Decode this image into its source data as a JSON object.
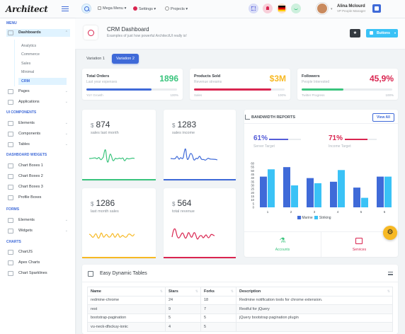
{
  "header": {
    "logo": "Architect",
    "nav": [
      {
        "label": "Mega Menu",
        "caret": "▾"
      },
      {
        "label": "Settings",
        "caret": "▾"
      },
      {
        "label": "Projects",
        "caret": "▾"
      }
    ],
    "user": {
      "name": "Alina Mclourd",
      "role": "VP People Manager"
    }
  },
  "sidebar": {
    "sections": {
      "menu": "Menu",
      "ui": "UI Components",
      "widgets": "Dashboard Widgets",
      "forms": "Forms",
      "charts": "Charts"
    },
    "items": {
      "dashboards": "Dashboards",
      "analytics": "Analytics",
      "commerce": "Commerce",
      "sales": "Sales",
      "minimal": "Minimal",
      "crm": "CRM",
      "pages": "Pages",
      "applications": "Applications",
      "elements": "Elements",
      "components": "Components",
      "tables": "Tables",
      "chartboxes1": "Chart Boxes 1",
      "chartboxes2": "Chart Boxes 2",
      "chartboxes3": "Chart Boxes 3",
      "profileboxes": "Profile Boxes",
      "f_elements": "Elements",
      "f_widgets": "Widgets",
      "chartjs": "ChartJS",
      "apex": "Apex Charts",
      "sparklines": "Chart Sparklines"
    }
  },
  "page": {
    "title": "CRM Dashboard",
    "subtitle": "Examples of just how powerful ArchitectUI really is!",
    "buttons_label": "Buttons",
    "tabs": [
      "Variation 1",
      "Variation 2"
    ]
  },
  "stats": [
    {
      "title": "Total Orders",
      "sub": "Last year expenses",
      "value": "1896",
      "foot_l": "YoY Growth",
      "foot_r": "100%",
      "progress": 0.72,
      "color": "#3ac47d",
      "bar": "#3f6ad8"
    },
    {
      "title": "Products Sold",
      "sub": "Revenue streams",
      "value": "$3M",
      "foot_l": "Sales",
      "foot_r": "100%",
      "progress": 0.85,
      "color": "#f7b924",
      "bar": "#d92550"
    },
    {
      "title": "Followers",
      "sub": "People Interested",
      "value": "45,9%",
      "foot_l": "Twitter Progress",
      "foot_r": "100%",
      "progress": 0.46,
      "color": "#d92550",
      "bar": "#3ac47d"
    }
  ],
  "mini": [
    {
      "currency": "$",
      "value": "874",
      "label": "sales last month",
      "color": "#3ac47d"
    },
    {
      "currency": "$",
      "value": "1283",
      "label": "sales income",
      "color": "#3f6ad8"
    },
    {
      "currency": "$",
      "value": "1286",
      "label": "last month sales",
      "color": "#f7b924"
    },
    {
      "currency": "$",
      "value": "564",
      "label": "total revenue",
      "color": "#d92550"
    }
  ],
  "bandwidth": {
    "title": "Bandwidth Reports",
    "view_all": "View All",
    "targets": [
      {
        "value": "61%",
        "label": "Server Target",
        "progress": 0.61,
        "color": "#545cd8"
      },
      {
        "value": "71%",
        "label": "Income Target",
        "progress": 0.71,
        "color": "#d92550"
      }
    ],
    "footer": [
      "Accounts",
      "Services"
    ]
  },
  "chart_data": {
    "type": "bar",
    "categories": [
      "1",
      "2",
      "3",
      "4",
      "5",
      "6"
    ],
    "series": [
      {
        "name": "Marine",
        "values": [
          42,
          55,
          40,
          35,
          27,
          42
        ],
        "color": "#3f6ad8"
      },
      {
        "name": "Striking",
        "values": [
          52,
          30,
          33,
          51,
          13,
          42
        ],
        "color": "#3ac2f6"
      }
    ],
    "x_tick_labels": [
      "1",
      "2",
      "3",
      "4",
      "5",
      "6"
    ],
    "y_ticks": [
      0,
      5,
      10,
      15,
      20,
      25,
      30,
      35,
      40,
      45,
      50,
      55,
      60
    ],
    "ylim": [
      0,
      60
    ],
    "legend": "bottom",
    "grid": false
  },
  "table": {
    "title": "Easy Dynamic Tables",
    "columns": [
      "Name",
      "Stars",
      "Forks",
      "Description"
    ],
    "rows": [
      [
        "redmine-chrome",
        "24",
        "18",
        "Redmine notification tools for chrome extension."
      ],
      [
        "rest",
        "9",
        "7",
        "Restful for jQuery"
      ],
      [
        "bootstrap-pagination",
        "5",
        "5",
        "jQuery bootstrap pagination plugin"
      ],
      [
        "vu-neck-dfsckuy-ionic",
        "4",
        "5",
        ""
      ]
    ]
  }
}
